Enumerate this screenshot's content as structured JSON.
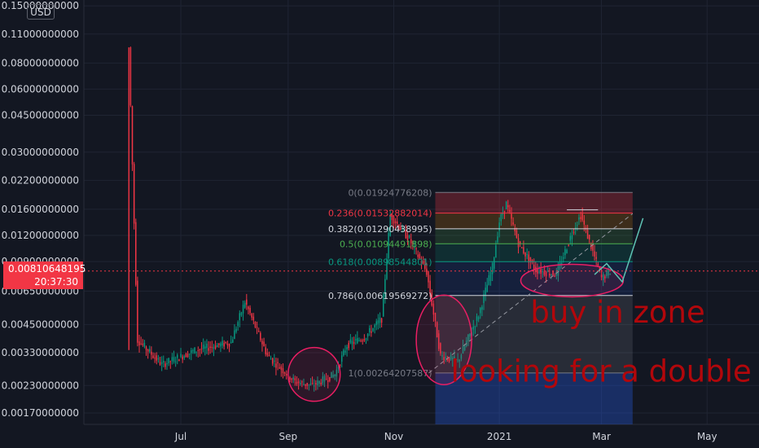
{
  "chart_data": {
    "type": "candlestick",
    "currency": "USD",
    "y_scale": "log",
    "ylim": [
      0.0015,
      0.16
    ],
    "grid": true,
    "y_ticks": [
      {
        "value": 0.15,
        "label": "0.15000000000"
      },
      {
        "value": 0.11,
        "label": "0.11000000000"
      },
      {
        "value": 0.08,
        "label": "0.08000000000"
      },
      {
        "value": 0.06,
        "label": "0.06000000000"
      },
      {
        "value": 0.045,
        "label": "0.04500000000"
      },
      {
        "value": 0.03,
        "label": "0.03000000000"
      },
      {
        "value": 0.022,
        "label": "0.02200000000"
      },
      {
        "value": 0.016,
        "label": "0.01600000000"
      },
      {
        "value": 0.012,
        "label": "0.01200000000"
      },
      {
        "value": 0.009,
        "label": "0.00900000000"
      },
      {
        "value": 0.0065,
        "label": "0.00650000000"
      },
      {
        "value": 0.0045,
        "label": "0.00450000000"
      },
      {
        "value": 0.0033,
        "label": "0.00330000000"
      },
      {
        "value": 0.0023,
        "label": "0.00230000000"
      },
      {
        "value": 0.0017,
        "label": "0.00170000000"
      }
    ],
    "x_ticks": [
      {
        "date": "2020-07-01",
        "label": "Jul"
      },
      {
        "date": "2020-09-01",
        "label": "Sep"
      },
      {
        "date": "2020-11-01",
        "label": "Nov"
      },
      {
        "date": "2021-01-01",
        "label": "2021"
      },
      {
        "date": "2021-03-01",
        "label": "Mar"
      },
      {
        "date": "2021-05-01",
        "label": "May"
      }
    ],
    "xlim": [
      "2020-05-06",
      "2021-05-31"
    ],
    "current_price": {
      "value": 0.00810648195,
      "label": "0.00810648195",
      "countdown": "20:37:30"
    },
    "key_points": [
      {
        "date": "2020-06-01",
        "price": 0.0034
      },
      {
        "date": "2020-06-01",
        "price": 0.095
      },
      {
        "date": "2020-06-06",
        "price": 0.0038
      },
      {
        "date": "2020-06-20",
        "price": 0.0029
      },
      {
        "date": "2020-07-10",
        "price": 0.0034
      },
      {
        "date": "2020-07-30",
        "price": 0.0037
      },
      {
        "date": "2020-08-07",
        "price": 0.0058
      },
      {
        "date": "2020-08-20",
        "price": 0.0032
      },
      {
        "date": "2020-09-05",
        "price": 0.0024
      },
      {
        "date": "2020-09-15",
        "price": 0.0023
      },
      {
        "date": "2020-09-28",
        "price": 0.0026
      },
      {
        "date": "2020-10-05",
        "price": 0.0036
      },
      {
        "date": "2020-10-15",
        "price": 0.0039
      },
      {
        "date": "2020-10-25",
        "price": 0.0048
      },
      {
        "date": "2020-10-30",
        "price": 0.015
      },
      {
        "date": "2020-11-10",
        "price": 0.0115
      },
      {
        "date": "2020-11-20",
        "price": 0.008
      },
      {
        "date": "2020-11-28",
        "price": 0.0032
      },
      {
        "date": "2020-12-08",
        "price": 0.003
      },
      {
        "date": "2020-12-20",
        "price": 0.005
      },
      {
        "date": "2020-12-28",
        "price": 0.0085
      },
      {
        "date": "2021-01-01",
        "price": 0.014
      },
      {
        "date": "2021-01-05",
        "price": 0.017
      },
      {
        "date": "2021-01-12",
        "price": 0.011
      },
      {
        "date": "2021-01-22",
        "price": 0.0082
      },
      {
        "date": "2021-02-03",
        "price": 0.0078
      },
      {
        "date": "2021-02-13",
        "price": 0.013
      },
      {
        "date": "2021-02-17",
        "price": 0.015
      },
      {
        "date": "2021-02-24",
        "price": 0.01
      },
      {
        "date": "2021-03-01",
        "price": 0.0075
      },
      {
        "date": "2021-03-06",
        "price": 0.0081
      }
    ],
    "fibonacci": {
      "start_date": "2020-11-25",
      "end_date": "2021-03-19",
      "levels": [
        {
          "ratio": "0",
          "value": 0.01924776208,
          "label": "0(0.01924776208)",
          "color": "#787b86"
        },
        {
          "ratio": "0.236",
          "value": 0.01532882014,
          "label": "0.236(0.01532882014)",
          "color": "#f23645"
        },
        {
          "ratio": "0.382",
          "value": 0.01290438995,
          "label": "0.382(0.01290438995)",
          "color": "#d1d4dc"
        },
        {
          "ratio": "0.5",
          "value": 0.01094491898,
          "label": "0.5(0.01094491898)",
          "color": "#4caf50"
        },
        {
          "ratio": "0.618",
          "value": 0.00898544801,
          "label": "0.618(0.00898544801)",
          "color": "#089981"
        },
        {
          "ratio": "0.786",
          "value": 0.00619569272,
          "label": "0.786(0.00619569272)",
          "color": "#d1d4dc"
        },
        {
          "ratio": "1",
          "value": 0.00264207587,
          "label": "1(0.00264207587)",
          "color": "#787b86"
        }
      ]
    },
    "annotations": [
      {
        "text": "buy in zone",
        "date": "2021-01-19",
        "price": 0.0046,
        "color": "#b2070b"
      },
      {
        "text": "looking for a double",
        "date": "2020-12-04",
        "price": 0.0024,
        "color": "#b2070b"
      }
    ]
  },
  "colors": {
    "background": "#131722",
    "grid": "#1f2433",
    "text": "#d1d4dc",
    "up": "#089981",
    "down": "#f23645",
    "ellipse": "#e91e63",
    "price_tag": "#f23645"
  }
}
